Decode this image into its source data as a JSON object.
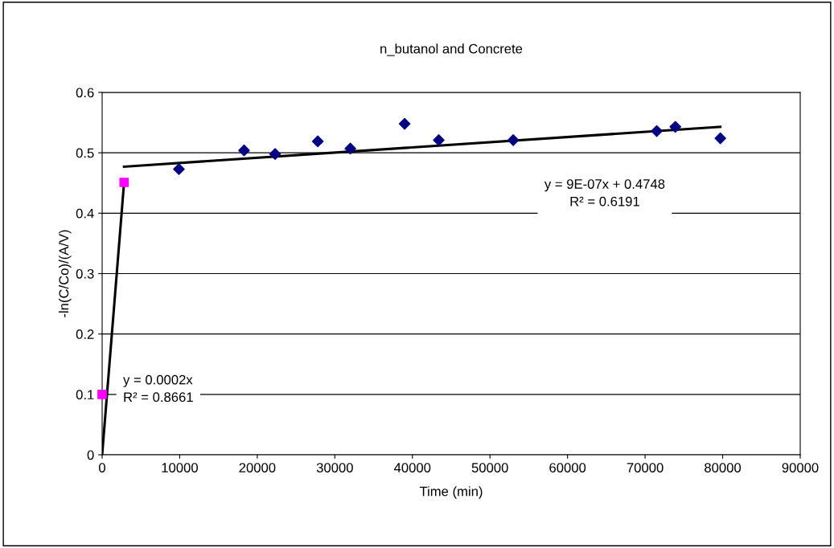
{
  "chart_data": {
    "type": "scatter",
    "title": "n_butanol and Concrete",
    "xlabel": "Time (min)",
    "ylabel": "-ln(C/Co)/(A/V)",
    "xlim": [
      0,
      90000
    ],
    "xticks": [
      0,
      10000,
      20000,
      30000,
      40000,
      50000,
      60000,
      70000,
      80000,
      90000
    ],
    "ylim": [
      0,
      0.6
    ],
    "yticks": [
      0,
      0.1,
      0.2,
      0.3,
      0.4,
      0.5,
      0.6
    ],
    "grid": "y",
    "legend": false,
    "series": [
      {
        "marker": "diamond",
        "color": "#000080",
        "x": [
          9900,
          18300,
          22300,
          27800,
          32000,
          39000,
          43400,
          53000,
          71500,
          73900,
          79700
        ],
        "values": [
          0.473,
          0.504,
          0.498,
          0.519,
          0.507,
          0.548,
          0.521,
          0.521,
          0.536,
          0.543,
          0.524
        ]
      },
      {
        "marker": "square",
        "color": "#ff00ff",
        "x": [
          0,
          2830
        ],
        "values": [
          0.1,
          0.451
        ]
      },
      {
        "type": "line",
        "marker": "none",
        "line_style": "solid",
        "color": "#000000",
        "x": [
          0,
          2830
        ],
        "values": [
          0,
          0.451
        ]
      },
      {
        "type": "line",
        "marker": "none",
        "line_style": "solid",
        "color": "#000000",
        "x": [
          2830,
          79700
        ],
        "values": [
          0.477,
          0.543
        ]
      }
    ],
    "annotations": [
      "y = 9E-07x + 0.4748\nR² = 0.6191",
      "y = 0.0002x\nR² = 0.8661"
    ]
  }
}
